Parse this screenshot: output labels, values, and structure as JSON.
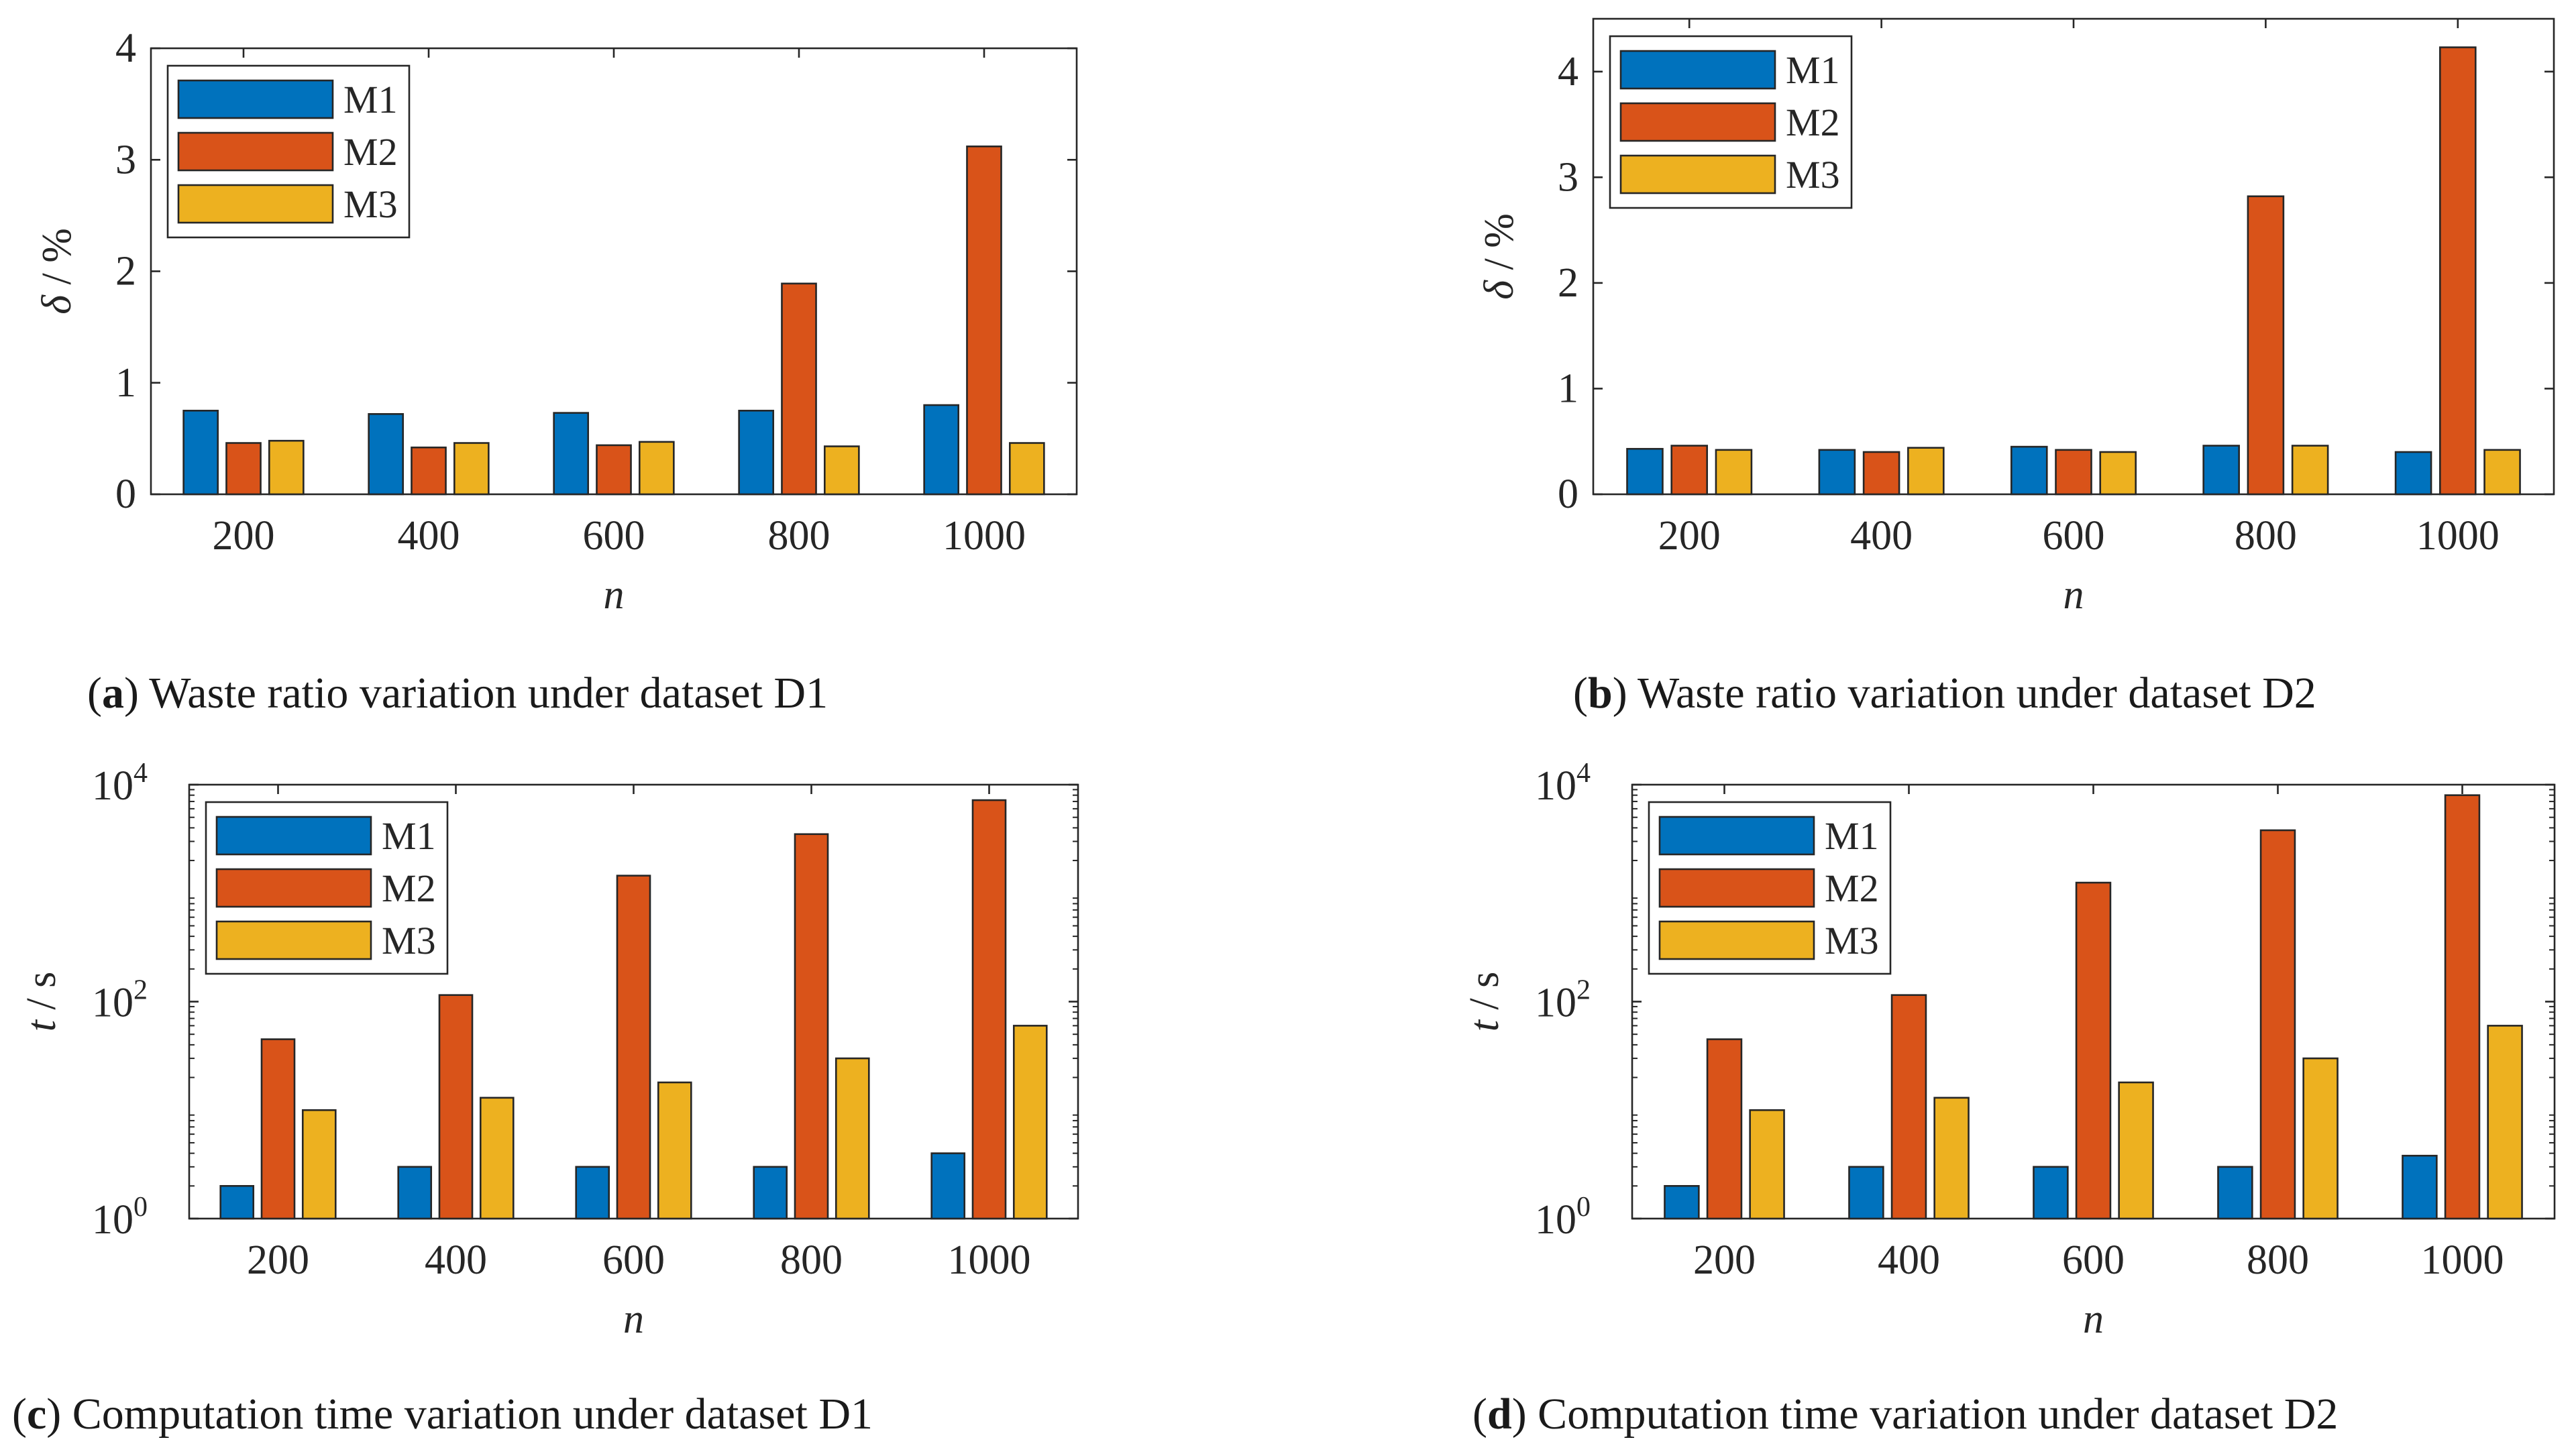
{
  "colors": {
    "M1": "#0072BD",
    "M2": "#D95319",
    "M3": "#EDB120"
  },
  "chart_data": [
    {
      "id": "a",
      "type": "bar",
      "scale": "linear",
      "caption_letter": "a",
      "caption_text": ") Waste ratio variation under dataset D1",
      "caption_open": "(",
      "categories": [
        "200",
        "400",
        "600",
        "800",
        "1000"
      ],
      "xlabel": "n",
      "ylabel_symbol": "δ",
      "ylabel_unit": " / %",
      "ylim": [
        0,
        4
      ],
      "yticks": [
        0,
        1,
        2,
        3,
        4
      ],
      "ytick_labels": [
        "0",
        "1",
        "2",
        "3",
        "4"
      ],
      "legend": [
        "M1",
        "M2",
        "M3"
      ],
      "legend_position": "top-left",
      "series": [
        {
          "name": "M1",
          "values": [
            0.75,
            0.72,
            0.73,
            0.75,
            0.8
          ]
        },
        {
          "name": "M2",
          "values": [
            0.46,
            0.42,
            0.44,
            1.89,
            3.12
          ]
        },
        {
          "name": "M3",
          "values": [
            0.48,
            0.46,
            0.47,
            0.43,
            0.46
          ]
        }
      ]
    },
    {
      "id": "b",
      "type": "bar",
      "scale": "linear",
      "caption_letter": "b",
      "caption_text": ") Waste ratio variation under dataset D2",
      "caption_open": "(",
      "categories": [
        "200",
        "400",
        "600",
        "800",
        "1000"
      ],
      "xlabel": "n",
      "ylabel_symbol": "δ",
      "ylabel_unit": " / %",
      "ylim": [
        0,
        4.5
      ],
      "yticks": [
        0,
        1,
        2,
        3,
        4
      ],
      "ytick_labels": [
        "0",
        "1",
        "2",
        "3",
        "4"
      ],
      "legend": [
        "M1",
        "M2",
        "M3"
      ],
      "legend_position": "top-left",
      "series": [
        {
          "name": "M1",
          "values": [
            0.43,
            0.42,
            0.45,
            0.46,
            0.4
          ]
        },
        {
          "name": "M2",
          "values": [
            0.46,
            0.4,
            0.42,
            2.82,
            4.23
          ]
        },
        {
          "name": "M3",
          "values": [
            0.42,
            0.44,
            0.4,
            0.46,
            0.42
          ]
        }
      ]
    },
    {
      "id": "c",
      "type": "bar",
      "scale": "log",
      "caption_letter": "c",
      "caption_text": ") Computation time variation under dataset D1",
      "caption_open": "(",
      "categories": [
        "200",
        "400",
        "600",
        "800",
        "1000"
      ],
      "xlabel": "n",
      "ylabel_symbol": "t",
      "ylabel_unit": " / s",
      "ylim": [
        1,
        10000
      ],
      "yticks": [
        1,
        100,
        10000
      ],
      "ytick_base": "10",
      "ytick_exponents": [
        "0",
        "2",
        "4"
      ],
      "legend": [
        "M1",
        "M2",
        "M3"
      ],
      "legend_position": "top-left",
      "series": [
        {
          "name": "M1",
          "values": [
            2.0,
            3.0,
            3.0,
            3.0,
            4.0
          ]
        },
        {
          "name": "M2",
          "values": [
            45,
            115,
            1450,
            3500,
            7200
          ]
        },
        {
          "name": "M3",
          "values": [
            10,
            13,
            18,
            30,
            60
          ]
        }
      ]
    },
    {
      "id": "d",
      "type": "bar",
      "scale": "log",
      "caption_letter": "d",
      "caption_text": ") Computation time variation under dataset D2",
      "caption_open": "(",
      "categories": [
        "200",
        "400",
        "600",
        "800",
        "1000"
      ],
      "xlabel": "n",
      "ylabel_symbol": "t",
      "ylabel_unit": " / s",
      "ylim": [
        1,
        10000
      ],
      "yticks": [
        1,
        100,
        10000
      ],
      "ytick_base": "10",
      "ytick_exponents": [
        "0",
        "2",
        "4"
      ],
      "legend": [
        "M1",
        "M2",
        "M3"
      ],
      "legend_position": "top-left",
      "series": [
        {
          "name": "M1",
          "values": [
            2.0,
            3.0,
            3.0,
            3.0,
            3.8
          ]
        },
        {
          "name": "M2",
          "values": [
            45,
            115,
            1250,
            3800,
            8000
          ]
        },
        {
          "name": "M3",
          "values": [
            10,
            13,
            18,
            30,
            60
          ]
        }
      ]
    }
  ]
}
